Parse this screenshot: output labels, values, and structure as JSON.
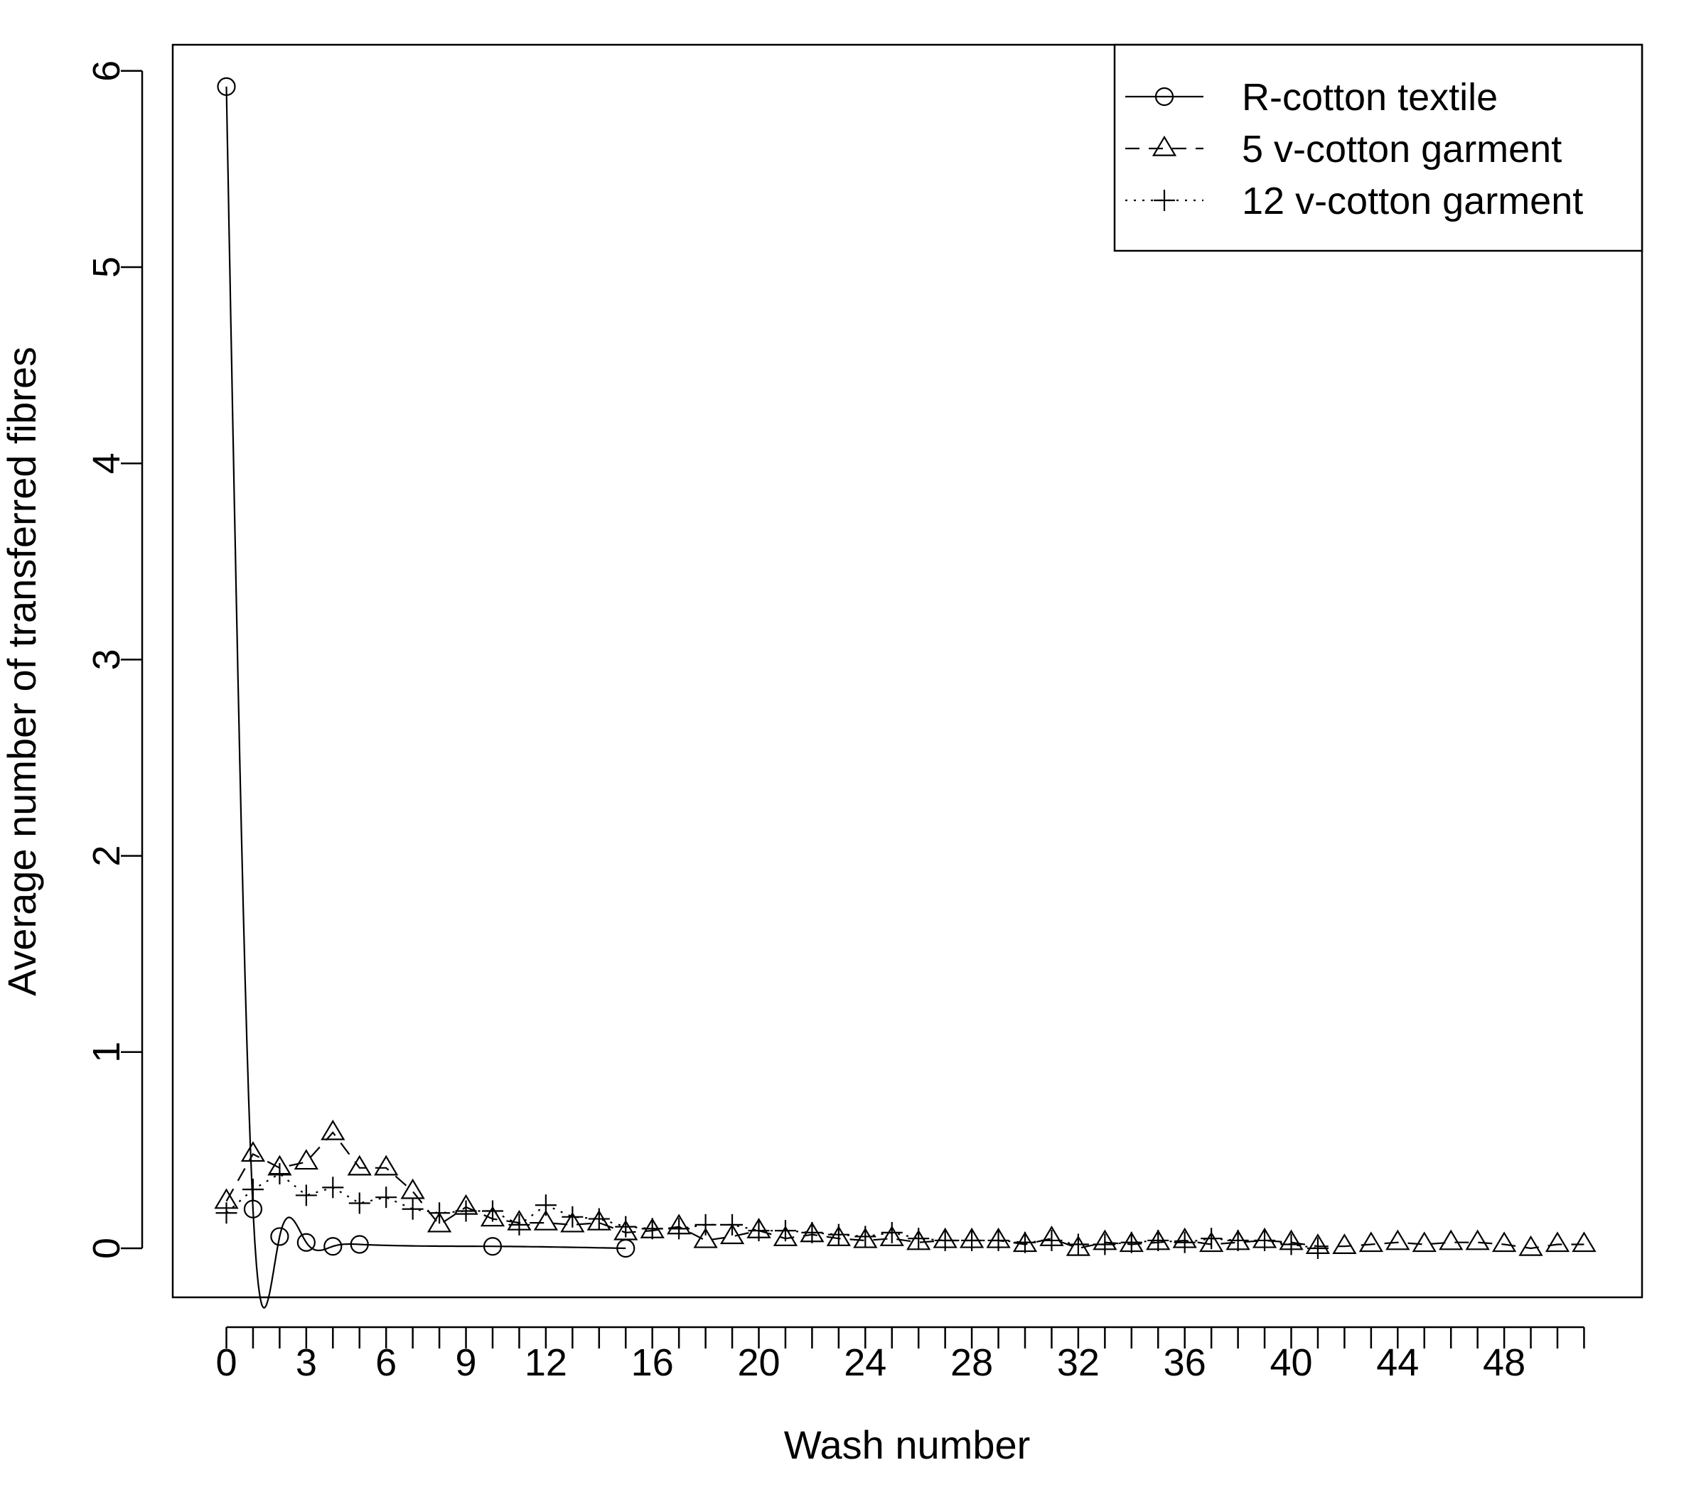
{
  "chart_data": {
    "type": "line",
    "title": "",
    "xlabel": "Wash number",
    "ylabel": "Average number of transferred fibres",
    "xlim": [
      -2,
      53
    ],
    "ylim": [
      -0.24,
      6.7
    ],
    "x_ticks": [
      0,
      3,
      6,
      9,
      12,
      16,
      20,
      24,
      28,
      32,
      36,
      40,
      44,
      48
    ],
    "x_minor_ticks": [
      1,
      2,
      4,
      5,
      7,
      8,
      10,
      11,
      13,
      14,
      15,
      17,
      18,
      19,
      21,
      22,
      23,
      25,
      26,
      27,
      29,
      30,
      31,
      33,
      34,
      35,
      37,
      38,
      39,
      41,
      42,
      43,
      45,
      46,
      47,
      49,
      50,
      51
    ],
    "y_ticks": [
      0,
      1,
      2,
      3,
      4,
      5,
      6
    ],
    "legend_position": "top-right",
    "grid": false,
    "series": [
      {
        "name": "R-cotton textile",
        "marker": "circle",
        "line": "solid",
        "smooth": true,
        "x": [
          0,
          1,
          2,
          3,
          4,
          5,
          10,
          15
        ],
        "y": [
          5.92,
          0.2,
          0.06,
          0.03,
          0.01,
          0.02,
          0.01,
          0.0
        ]
      },
      {
        "name": "5 v-cotton garment",
        "marker": "triangle",
        "line": "dashed",
        "smooth": false,
        "x": [
          0,
          1,
          2,
          3,
          4,
          5,
          6,
          7,
          8,
          9,
          10,
          11,
          12,
          13,
          14,
          15,
          16,
          17,
          18,
          19,
          20,
          21,
          22,
          23,
          24,
          25,
          26,
          27,
          28,
          29,
          30,
          31,
          32,
          33,
          34,
          35,
          36,
          37,
          38,
          39,
          40,
          41,
          42,
          43,
          44,
          45,
          46,
          47,
          48,
          49,
          50,
          51
        ],
        "y": [
          0.24,
          0.48,
          0.41,
          0.44,
          0.59,
          0.41,
          0.41,
          0.29,
          0.12,
          0.21,
          0.15,
          0.13,
          0.13,
          0.12,
          0.13,
          0.08,
          0.09,
          0.11,
          0.04,
          0.06,
          0.09,
          0.05,
          0.07,
          0.05,
          0.04,
          0.05,
          0.03,
          0.04,
          0.04,
          0.04,
          0.02,
          0.05,
          0.0,
          0.03,
          0.02,
          0.03,
          0.04,
          0.02,
          0.03,
          0.04,
          0.03,
          0.01,
          0.01,
          0.02,
          0.03,
          0.02,
          0.03,
          0.03,
          0.02,
          0.0,
          0.02,
          0.02
        ]
      },
      {
        "name": "12 v-cotton garment",
        "marker": "plus",
        "line": "dotted",
        "smooth": false,
        "x": [
          0,
          1,
          2,
          3,
          4,
          5,
          6,
          7,
          8,
          9,
          10,
          11,
          12,
          13,
          14,
          15,
          16,
          17,
          18,
          19,
          20,
          21,
          22,
          23,
          24,
          25,
          26,
          27,
          28,
          29,
          30,
          31,
          32,
          33,
          34,
          35,
          36,
          37,
          38,
          39,
          40,
          41
        ],
        "y": [
          0.18,
          0.3,
          0.38,
          0.27,
          0.31,
          0.23,
          0.26,
          0.2,
          0.18,
          0.19,
          0.19,
          0.12,
          0.22,
          0.16,
          0.15,
          0.11,
          0.1,
          0.1,
          0.12,
          0.12,
          0.09,
          0.09,
          0.08,
          0.07,
          0.06,
          0.08,
          0.05,
          0.04,
          0.04,
          0.04,
          0.03,
          0.04,
          0.02,
          0.02,
          0.03,
          0.04,
          0.03,
          0.05,
          0.04,
          0.04,
          0.02,
          0.0
        ]
      }
    ]
  }
}
